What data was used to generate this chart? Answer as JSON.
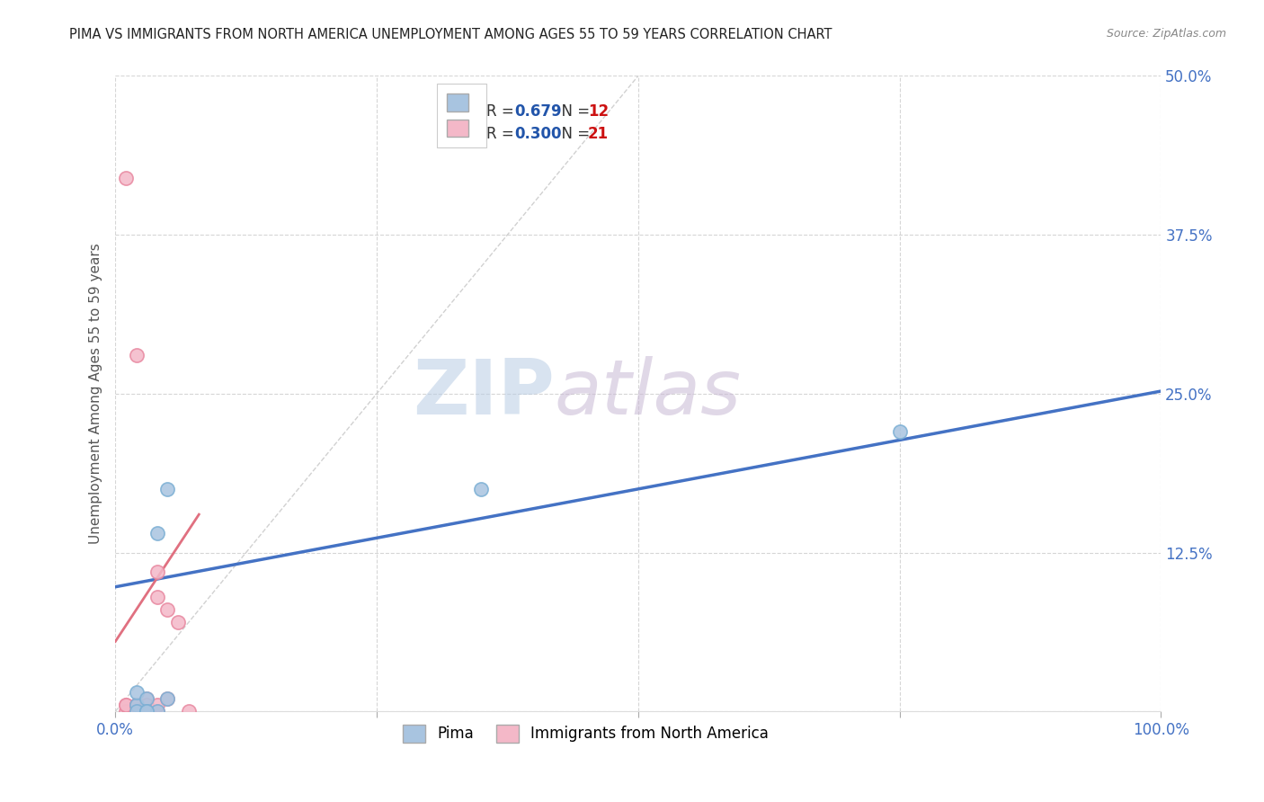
{
  "title": "PIMA VS IMMIGRANTS FROM NORTH AMERICA UNEMPLOYMENT AMONG AGES 55 TO 59 YEARS CORRELATION CHART",
  "source": "Source: ZipAtlas.com",
  "ylabel": "Unemployment Among Ages 55 to 59 years",
  "background_color": "#ffffff",
  "grid_color": "#cccccc",
  "pima_color": "#a8c4e0",
  "pima_edge_color": "#7bafd4",
  "immigrants_color": "#f4b8c8",
  "immigrants_edge_color": "#e888a0",
  "pima_line_color": "#4472c4",
  "immigrants_line_color": "#e07080",
  "diagonal_color": "#cccccc",
  "xlim": [
    0.0,
    1.0
  ],
  "ylim": [
    0.0,
    0.5
  ],
  "xticks": [
    0.0,
    0.25,
    0.5,
    0.75,
    1.0
  ],
  "xtick_labels": [
    "0.0%",
    "",
    "",
    "",
    "100.0%"
  ],
  "yticks": [
    0.0,
    0.125,
    0.25,
    0.375,
    0.5
  ],
  "ytick_labels": [
    "",
    "12.5%",
    "25.0%",
    "37.5%",
    "50.0%"
  ],
  "pima_x": [
    0.02,
    0.02,
    0.02,
    0.03,
    0.03,
    0.04,
    0.04,
    0.05,
    0.05,
    0.35,
    0.75,
    0.03
  ],
  "pima_y": [
    0.005,
    0.015,
    0.0,
    0.01,
    0.0,
    0.14,
    0.0,
    0.01,
    0.175,
    0.175,
    0.22,
    0.0
  ],
  "immigrants_x": [
    0.01,
    0.01,
    0.01,
    0.01,
    0.02,
    0.02,
    0.02,
    0.02,
    0.02,
    0.02,
    0.03,
    0.03,
    0.03,
    0.04,
    0.04,
    0.04,
    0.04,
    0.05,
    0.05,
    0.06,
    0.07
  ],
  "immigrants_y": [
    0.0,
    0.005,
    0.005,
    0.42,
    0.0,
    0.005,
    0.005,
    0.005,
    0.005,
    0.28,
    0.0,
    0.01,
    0.005,
    0.0,
    0.005,
    0.09,
    0.11,
    0.01,
    0.08,
    0.07,
    0.0
  ],
  "pima_line_x0": 0.0,
  "pima_line_y0": 0.098,
  "pima_line_x1": 1.0,
  "pima_line_y1": 0.252,
  "imm_line_x0": 0.0,
  "imm_line_y0": 0.055,
  "imm_line_x1": 0.08,
  "imm_line_y1": 0.155,
  "marker_size": 120,
  "marker_linewidth": 1.2,
  "legend_R_color": "#2255aa",
  "legend_N_color": "#cc1111",
  "legend_text_color": "#333333",
  "legend_box_color": "#ffffff",
  "legend_border_color": "#cccccc",
  "watermark_zip_color": "#b8cce4",
  "watermark_atlas_color": "#c8b8d4"
}
